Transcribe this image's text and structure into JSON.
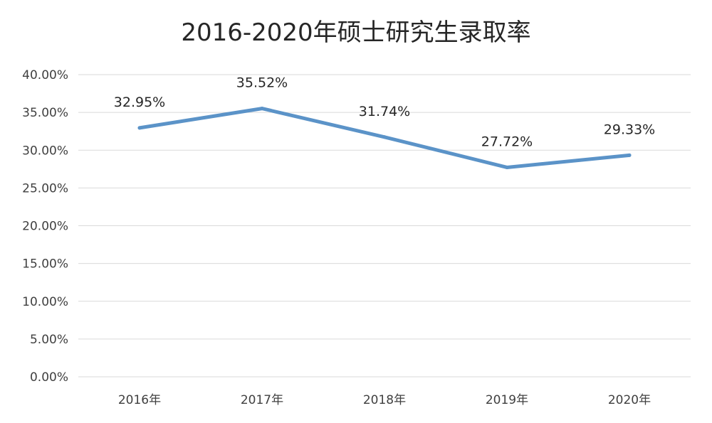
{
  "chart_data": {
    "type": "line",
    "title": "2016-2020年硕士研究生录取率",
    "categories": [
      "2016年",
      "2017年",
      "2018年",
      "2019年",
      "2020年"
    ],
    "series": [
      {
        "values": [
          32.95,
          35.52,
          31.74,
          27.72,
          29.33
        ],
        "labels": [
          "32.95%",
          "35.52%",
          "31.74%",
          "27.72%",
          "29.33%"
        ],
        "color": "#5b93c8"
      }
    ],
    "y_ticks": [
      "0.00%",
      "5.00%",
      "10.00%",
      "15.00%",
      "20.00%",
      "25.00%",
      "30.00%",
      "35.00%",
      "40.00%"
    ],
    "ylim": [
      0,
      40
    ],
    "grid": true,
    "legend": "none",
    "xlabel": "",
    "ylabel": ""
  }
}
